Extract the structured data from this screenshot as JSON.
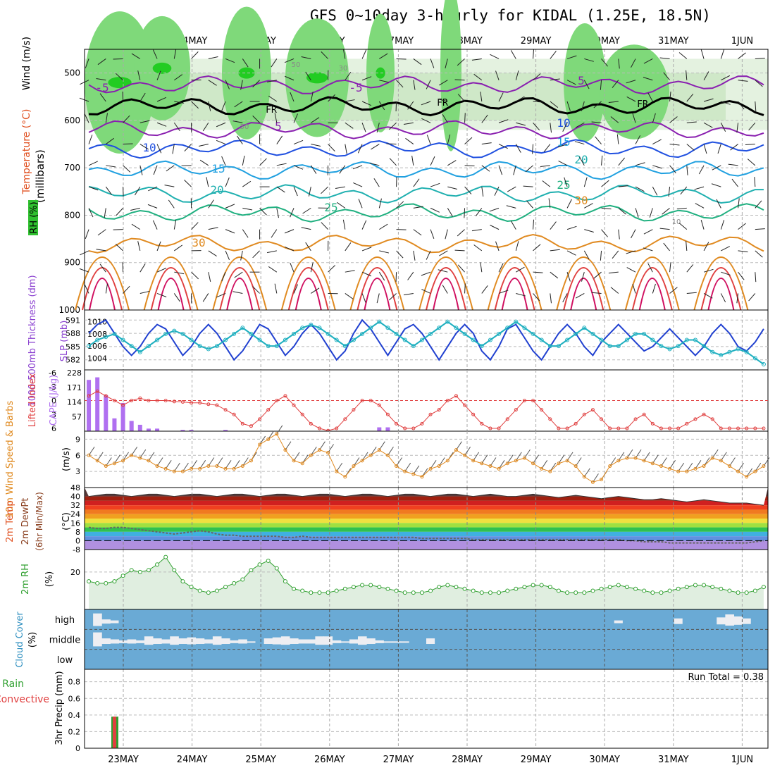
{
  "title": "GFS 0~10day 3-hourly for KIDAL (1.25E, 18.5N)",
  "dates": [
    "23MAY",
    "24MAY",
    "25MAY",
    "26MAY",
    "27MAY",
    "28MAY",
    "29MAY",
    "30MAY",
    "31MAY",
    "1JUN"
  ],
  "chart_data": [
    {
      "panel": "upper-air",
      "type": "heatmap",
      "ylabel": "(millibars)",
      "side_labels": [
        "Wind (m/s)",
        "Temperature (°C)",
        "RH (%)"
      ],
      "ylim": [
        1000,
        450
      ],
      "y_ticks": [
        500,
        600,
        700,
        800,
        900,
        1000
      ],
      "freezing_label": "FR",
      "isotherm_labels": [
        "-5",
        "-5",
        "5",
        "5",
        "10",
        "10",
        "15",
        "15",
        "20",
        "20",
        "25",
        "25",
        "30",
        "30"
      ],
      "rh_contour_labels": [
        "50",
        "30",
        "50",
        "10"
      ],
      "isotherms": [
        {
          "label": "-5",
          "level_mb": 525
        },
        {
          "label": "FR",
          "level_mb": 570
        },
        {
          "label": "5",
          "level_mb": 620
        },
        {
          "label": "10",
          "level_mb": 660
        },
        {
          "label": "15",
          "level_mb": 705
        },
        {
          "label": "20",
          "level_mb": 755
        },
        {
          "label": "25",
          "level_mb": 795
        },
        {
          "label": "30",
          "level_mb": 860
        }
      ]
    },
    {
      "panel": "thickness-slp",
      "type": "line",
      "left_label": "1000-500mb Thickness (dm)",
      "right_label": "SLP (mb)",
      "left_ticks": [
        "591",
        "588",
        "585",
        "582"
      ],
      "right_ticks": [
        "1010",
        "1008",
        "1006",
        "1004"
      ],
      "series": [
        {
          "name": "1000-500mb Thickness (dm)",
          "color": "#2040d0",
          "values": [
            588,
            590,
            591,
            588,
            585,
            583,
            585,
            588,
            590,
            589,
            586,
            583,
            585,
            588,
            590,
            588,
            585,
            582,
            584,
            587,
            590,
            589,
            586,
            583,
            585,
            588,
            590,
            588,
            585,
            582,
            584,
            588,
            591,
            589,
            586,
            583,
            586,
            589,
            590,
            588,
            585,
            582,
            585,
            588,
            590,
            588,
            584,
            582,
            585,
            589,
            590,
            587,
            584,
            582,
            585,
            588,
            590,
            588,
            585,
            583,
            586,
            588,
            590,
            588,
            586,
            584,
            585,
            587,
            589,
            587,
            585,
            583,
            585,
            588,
            590,
            588,
            585,
            584,
            586,
            589
          ]
        },
        {
          "name": "SLP (mb)",
          "color": "#20b0c0",
          "values": [
            1006,
            1007,
            1007.5,
            1008,
            1007,
            1006,
            1005,
            1006,
            1007,
            1008,
            1008.5,
            1008,
            1007,
            1006,
            1005.5,
            1006,
            1007,
            1008,
            1009,
            1008,
            1007,
            1006,
            1006,
            1007,
            1008,
            1009,
            1009.5,
            1009,
            1008,
            1007,
            1006,
            1007,
            1008,
            1009,
            1010,
            1009,
            1008,
            1007,
            1006,
            1007,
            1008,
            1009,
            1010,
            1009,
            1008,
            1007,
            1006,
            1007,
            1008,
            1009,
            1010,
            1009,
            1008,
            1007,
            1006,
            1006,
            1007,
            1008,
            1009,
            1008,
            1007,
            1006,
            1006,
            1007,
            1008,
            1008,
            1007,
            1006,
            1005.5,
            1006,
            1007,
            1007,
            1006,
            1005,
            1004.5,
            1005,
            1005.5,
            1005,
            1004,
            1003
          ]
        }
      ]
    },
    {
      "panel": "stability",
      "type": "bar",
      "left_label": "Lifted Index",
      "right_label": "CAPE (J/kg)",
      "left_ticks": [
        "-6",
        "-3",
        "0",
        "3",
        "6"
      ],
      "right_ticks": [
        "228",
        "171",
        "114",
        "57"
      ],
      "cape_values": [
        200,
        210,
        140,
        50,
        110,
        40,
        25,
        10,
        10,
        0,
        0,
        5,
        5,
        0,
        0,
        0,
        5,
        0,
        0,
        0,
        0,
        0,
        0,
        0,
        0,
        0,
        0,
        0,
        0,
        0,
        0,
        0,
        0,
        0,
        15,
        15,
        0,
        0,
        0,
        0,
        0,
        0,
        0,
        0,
        0,
        0,
        0,
        0,
        0,
        0,
        0,
        0,
        0,
        0,
        0,
        0,
        0,
        0,
        0,
        0,
        0,
        0,
        0,
        0,
        0,
        0,
        0,
        0,
        0,
        0,
        0,
        0,
        0,
        0,
        0,
        0,
        0,
        0,
        0,
        0
      ],
      "lifted_index": [
        -1,
        -2,
        -1,
        0,
        1,
        0,
        -0.5,
        0,
        0,
        0,
        0.2,
        0.3,
        0.5,
        0.5,
        0.8,
        1,
        2,
        3,
        5,
        5.5,
        4,
        2,
        0,
        -1,
        1,
        3,
        5,
        6,
        6.5,
        6,
        4,
        2,
        0,
        0,
        1,
        3,
        5,
        6,
        6,
        5,
        3,
        2,
        0,
        -1,
        1,
        3,
        5,
        6,
        6,
        4,
        2,
        0,
        0,
        2,
        4,
        6,
        6,
        5,
        3,
        2,
        4,
        6,
        6,
        6,
        4,
        3,
        5,
        6,
        6,
        6,
        5,
        4,
        3,
        4,
        6,
        6,
        6,
        6,
        6,
        6
      ]
    },
    {
      "panel": "wind-10m",
      "type": "line",
      "left_label": "10m Wind Speed & Barbs",
      "unit": "(m/s)",
      "y_ticks": [
        "9",
        "6",
        "3"
      ],
      "ylim": [
        0,
        10.5
      ],
      "series": [
        {
          "name": "10m Wind Speed",
          "color": "#e08a20",
          "values": [
            6,
            5,
            4,
            4.5,
            5,
            6,
            5.5,
            5,
            4,
            3.5,
            3,
            3,
            3.5,
            3.5,
            4,
            4,
            3.5,
            3.5,
            4,
            5,
            8,
            9,
            10,
            7,
            5,
            4.5,
            6,
            7,
            6.5,
            3,
            2,
            4,
            5,
            6,
            7,
            6,
            4,
            3,
            2.5,
            2,
            3.5,
            4,
            5,
            7,
            6,
            5,
            4.5,
            4,
            3.5,
            4.5,
            5,
            5.5,
            4.5,
            3.5,
            3,
            4.5,
            5,
            4,
            2,
            1,
            1.5,
            4,
            5,
            5.5,
            5.5,
            5,
            4.5,
            4,
            3.5,
            3,
            3,
            3.5,
            4,
            5.5,
            5,
            4,
            3,
            2,
            3,
            4
          ]
        }
      ]
    },
    {
      "panel": "temperature-2m",
      "type": "area",
      "left_label": "2m Temp",
      "left_label_2": "2m DewPt",
      "left_label_3": "(6hr Min/Max)",
      "unit": "(°C)",
      "y_ticks": [
        "48",
        "40",
        "32",
        "24",
        "16",
        "8",
        "0",
        "-8"
      ],
      "ylim": [
        -8,
        48
      ],
      "temp_max": [
        40,
        41,
        42,
        42,
        41,
        40,
        41,
        42,
        42,
        41,
        40,
        41,
        42,
        42,
        41,
        40,
        41,
        42,
        42,
        41,
        40,
        41,
        42,
        42,
        41,
        40,
        41,
        42,
        42,
        41,
        40,
        41,
        42,
        42,
        41,
        40,
        41,
        42,
        42,
        41,
        40,
        41,
        42,
        42,
        41,
        40,
        41,
        42,
        41,
        40,
        40,
        41,
        42,
        41,
        40,
        39,
        40,
        41,
        40,
        39,
        38,
        39,
        40,
        39,
        38,
        37,
        37,
        38,
        37,
        36,
        35,
        36,
        37,
        36,
        35,
        34,
        34,
        34,
        33,
        32
      ],
      "dewpoint": [
        12,
        11,
        11,
        12,
        12,
        11,
        10,
        9,
        8,
        7,
        6,
        7,
        8,
        9,
        8,
        6,
        5,
        5,
        4,
        4,
        4,
        4,
        4,
        3,
        3,
        4,
        3,
        3,
        3,
        3,
        3,
        3,
        3,
        3,
        3,
        3,
        3,
        3,
        3,
        2,
        2,
        2,
        2,
        2,
        2,
        1,
        1,
        1,
        1,
        1,
        1,
        1,
        1,
        1,
        1,
        1,
        1,
        1,
        1,
        1,
        1,
        1,
        1,
        0,
        0,
        -1,
        -1,
        -1,
        -2,
        -2,
        -2,
        -2,
        -2,
        -2,
        -2,
        -2,
        -2,
        -2,
        -1,
        0
      ]
    },
    {
      "panel": "rh-2m",
      "type": "area",
      "left_label": "2m RH",
      "unit": "(%)",
      "y_ticks": [
        "20"
      ],
      "ylim": [
        0,
        32
      ],
      "series": [
        {
          "name": "2m RH",
          "color": "#30a030",
          "values": [
            15,
            14,
            14,
            15,
            18,
            21,
            20,
            21,
            24,
            28,
            21,
            15,
            12,
            10,
            9,
            10,
            12,
            14,
            16,
            21,
            24,
            26,
            22,
            15,
            11,
            10,
            9,
            9,
            9,
            10,
            11,
            12,
            13,
            13,
            12,
            11,
            10,
            9,
            9,
            9,
            10,
            12,
            13,
            12,
            11,
            10,
            9,
            9,
            9,
            10,
            11,
            12,
            13,
            13,
            12,
            10,
            9,
            9,
            9,
            10,
            11,
            12,
            13,
            12,
            11,
            10,
            9,
            9,
            10,
            11,
            12,
            13,
            13,
            12,
            11,
            10,
            9,
            9,
            10,
            12
          ]
        }
      ]
    },
    {
      "panel": "cloud-cover",
      "type": "bar",
      "left_label": "Cloud Cover",
      "unit": "(%)",
      "row_labels": [
        "high",
        "middle",
        "low"
      ],
      "high": [
        0,
        90,
        30,
        20,
        0,
        0,
        0,
        0,
        0,
        0,
        0,
        0,
        0,
        0,
        0,
        0,
        0,
        0,
        0,
        0,
        0,
        0,
        0,
        0,
        0,
        0,
        0,
        0,
        0,
        0,
        0,
        0,
        0,
        0,
        0,
        0,
        0,
        0,
        0,
        0,
        0,
        0,
        0,
        0,
        0,
        0,
        0,
        0,
        0,
        0,
        0,
        0,
        0,
        0,
        0,
        0,
        0,
        0,
        0,
        0,
        0,
        0,
        20,
        0,
        0,
        0,
        0,
        0,
        0,
        40,
        0,
        0,
        0,
        0,
        50,
        80,
        60,
        40,
        0,
        0
      ],
      "middle": [
        0,
        100,
        40,
        30,
        20,
        30,
        20,
        60,
        40,
        30,
        60,
        40,
        50,
        40,
        30,
        60,
        40,
        20,
        30,
        10,
        0,
        40,
        50,
        60,
        40,
        30,
        30,
        60,
        60,
        20,
        10,
        30,
        60,
        40,
        20,
        10,
        10,
        10,
        0,
        0,
        40,
        0,
        0,
        0,
        0,
        0,
        0,
        0,
        0,
        0,
        0,
        0,
        0,
        0,
        0,
        0,
        0,
        0,
        0,
        0,
        0,
        0,
        0,
        0,
        0,
        0,
        0,
        0,
        0,
        0,
        0,
        0,
        0,
        0,
        0,
        0,
        0,
        0,
        0,
        0
      ],
      "low": [
        0,
        0,
        0,
        0,
        0,
        0,
        0,
        0,
        0,
        0,
        0,
        0,
        0,
        0,
        0,
        0,
        0,
        0,
        0,
        0,
        0,
        0,
        0,
        0,
        0,
        0,
        0,
        0,
        0,
        0,
        0,
        0,
        0,
        0,
        0,
        0,
        0,
        0,
        0,
        0,
        0,
        0,
        0,
        0,
        0,
        0,
        0,
        0,
        0,
        0,
        0,
        0,
        0,
        0,
        0,
        0,
        0,
        0,
        0,
        0,
        0,
        0,
        0,
        0,
        0,
        0,
        0,
        0,
        0,
        0,
        0,
        0,
        0,
        0,
        0,
        0,
        0,
        0,
        0,
        0
      ]
    },
    {
      "panel": "precipitation",
      "type": "bar",
      "left_label": "Total / Rain",
      "left_label_2": "Convective",
      "ylabel": "3hr Precip (mm)",
      "y_ticks": [
        "0.8",
        "0.6",
        "0.4",
        "0.2",
        "0"
      ],
      "ylim": [
        0,
        0.95
      ],
      "run_total": "Run Total = 0.38",
      "bars": [
        {
          "date": "22MAY 21Z",
          "total": 0.38,
          "convective": 0.38
        }
      ]
    }
  ],
  "colors": {
    "thickness": "#2040d0",
    "slp": "#20b0c0",
    "lifted": "#e04040",
    "cape": "#b070f0",
    "wind": "#e08a20",
    "rh": "#30a030",
    "cloud_blue": "#6aaad5",
    "precip_total": "#30a030",
    "precip_conv": "#e04040"
  }
}
